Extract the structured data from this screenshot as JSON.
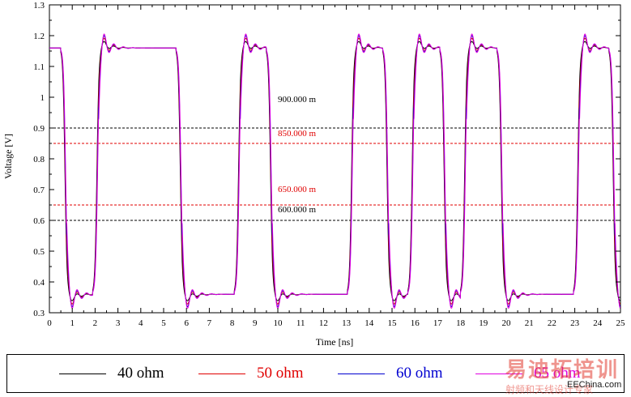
{
  "chart_data": {
    "type": "line",
    "title": "",
    "xlabel": "Time [ns]",
    "ylabel": "Voltage [V]",
    "xlim": [
      0,
      25
    ],
    "ylim": [
      0.3,
      1.3
    ],
    "xticks": [
      0,
      0.5,
      1,
      1.5,
      2,
      2.5,
      3,
      3.5,
      4,
      4.5,
      5,
      5.5,
      6,
      6.5,
      7,
      7.5,
      8,
      8.5,
      9,
      9.5,
      10,
      10.5,
      11,
      11.5,
      12,
      12.5,
      13,
      13.5,
      14,
      14.5,
      15,
      15.5,
      16,
      16.5,
      17,
      17.5,
      18,
      18.5,
      19,
      19.5,
      20,
      20.5,
      21,
      21.5,
      22,
      22.5,
      23,
      23.5,
      24,
      24.5,
      25
    ],
    "yticks": [
      0.3,
      0.35,
      0.4,
      0.45,
      0.5,
      0.55,
      0.6,
      0.65,
      0.7,
      0.75,
      0.8,
      0.85,
      0.9,
      0.95,
      1,
      1.05,
      1.1,
      1.15,
      1.2,
      1.25,
      1.3
    ],
    "grid": false,
    "legend_position": "bottom",
    "high_level": 1.16,
    "low_level": 0.36,
    "transitions": [
      {
        "t": 0.5,
        "dir": "fall"
      },
      {
        "t": 1.9,
        "dir": "rise"
      },
      {
        "t": 5.55,
        "dir": "fall"
      },
      {
        "t": 8.1,
        "dir": "rise"
      },
      {
        "t": 9.5,
        "dir": "fall"
      },
      {
        "t": 13.05,
        "dir": "rise"
      },
      {
        "t": 14.6,
        "dir": "fall"
      },
      {
        "t": 15.7,
        "dir": "rise"
      },
      {
        "t": 17.1,
        "dir": "fall"
      },
      {
        "t": 18.0,
        "dir": "rise"
      },
      {
        "t": 19.6,
        "dir": "fall"
      },
      {
        "t": 22.95,
        "dir": "rise"
      },
      {
        "t": 24.5,
        "dir": "fall"
      }
    ],
    "series": [
      {
        "name": "40 ohm",
        "color": "#000000",
        "ringing": 0.02
      },
      {
        "name": "50 ohm",
        "color": "#e00000",
        "ringing": 0.04
      },
      {
        "name": "60 ohm",
        "color": "#0000d0",
        "ringing": 0.055
      },
      {
        "name": "65 ohm",
        "color": "#e000e0",
        "ringing": 0.065
      }
    ],
    "reference_lines": [
      {
        "y": 0.9,
        "label": "900.000 m",
        "color": "#000000"
      },
      {
        "y": 0.85,
        "label": "850.000 m",
        "color": "#e00000"
      },
      {
        "y": 0.65,
        "label": "650.000 m",
        "color": "#e00000"
      },
      {
        "y": 0.6,
        "label": "600.000 m",
        "color": "#000000"
      }
    ]
  },
  "legend": {
    "items": [
      {
        "label": "40 ohm",
        "color": "#000000"
      },
      {
        "label": "50 ohm",
        "color": "#e00000"
      },
      {
        "label": "60 ohm",
        "color": "#0000d0"
      },
      {
        "label": "65 ohm",
        "color": "#e000e0"
      }
    ]
  },
  "watermark": {
    "logo_text": "易迪拓培训",
    "site": "EEChina.com",
    "subtitle": "射频和天线设计专家"
  }
}
